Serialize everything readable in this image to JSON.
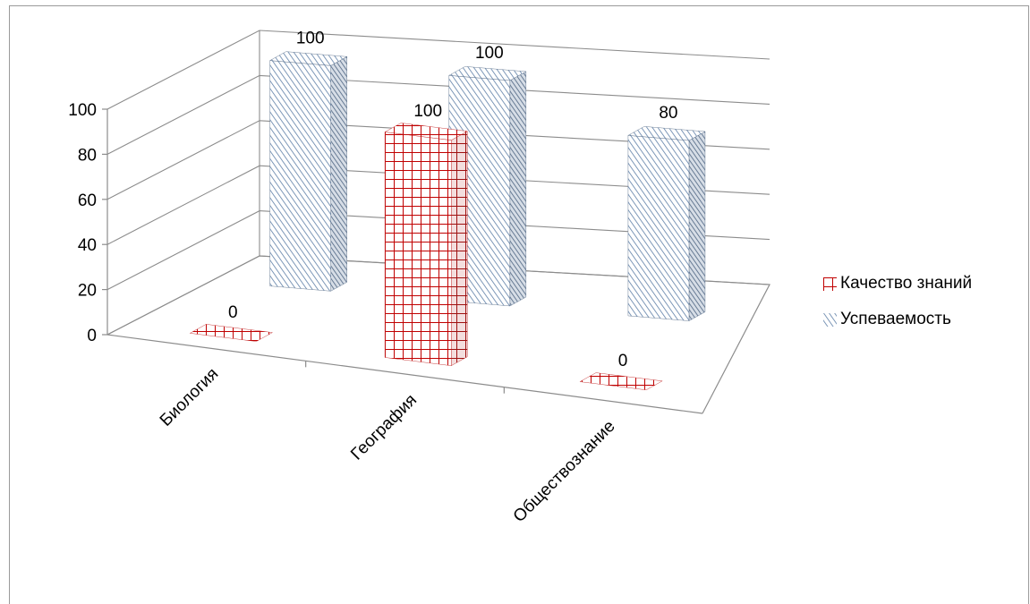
{
  "chart_data": {
    "type": "bar",
    "categories": [
      "Биология",
      "География",
      "Обществознание"
    ],
    "series": [
      {
        "name": "Качество знаний",
        "values": [
          0,
          100,
          0
        ],
        "color": "#c00000",
        "pattern": "grid"
      },
      {
        "name": "Успеваемость",
        "values": [
          100,
          100,
          80
        ],
        "color": "#1f3f7f",
        "pattern": "diagonal-stripes"
      }
    ],
    "ylim": [
      0,
      100
    ],
    "yticks": [
      "0",
      "20",
      "40",
      "60",
      "80",
      "100"
    ],
    "grid": true,
    "legend_position": "right",
    "data_labels": true,
    "style": "3d-columns"
  }
}
